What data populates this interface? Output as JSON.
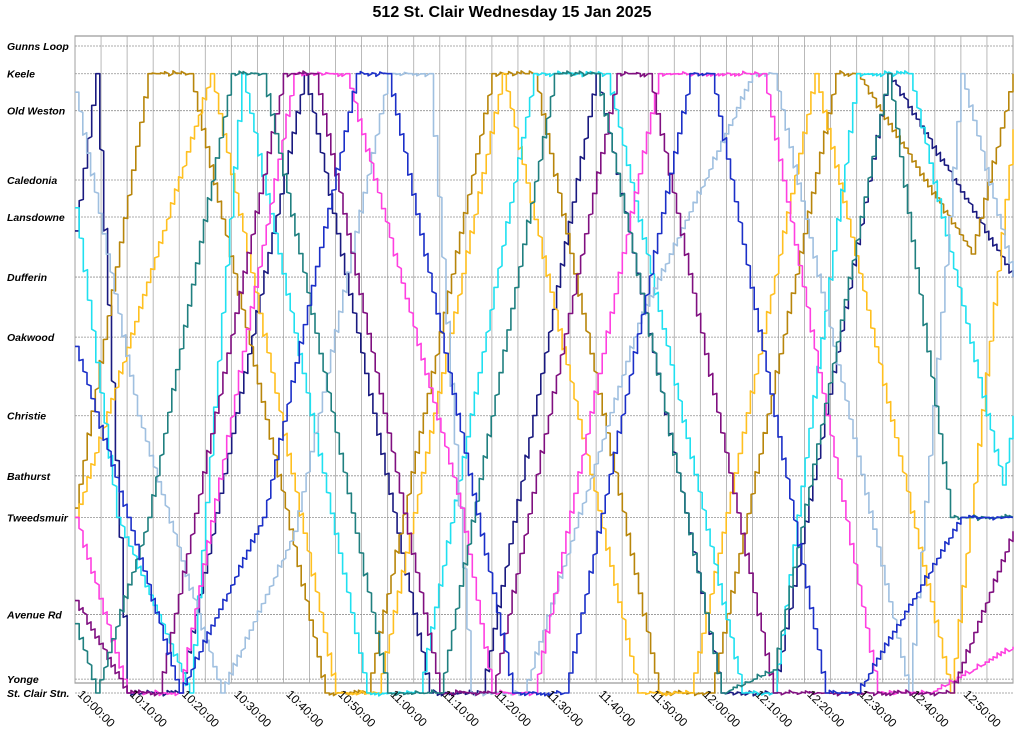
{
  "chart_data": {
    "type": "line",
    "title": "512 St. Clair Wednesday 15 Jan 2025",
    "xlabel": "",
    "ylabel": "",
    "x_ticks": [
      "10:00:00",
      "10:10:00",
      "10:20:00",
      "10:30:00",
      "10:40:00",
      "10:50:00",
      "11:00:00",
      "11:10:00",
      "11:20:00",
      "11:30:00",
      "11:40:00",
      "11:50:00",
      "12:00:00",
      "12:10:00",
      "12:20:00",
      "12:30:00",
      "12:40:00",
      "12:50:00"
    ],
    "x_range_minutes": [
      0,
      180
    ],
    "stops": [
      {
        "label": "Gunns Loop",
        "pos": 0
      },
      {
        "label": "Keele",
        "pos": 0.6
      },
      {
        "label": "Old Weston",
        "pos": 1.4
      },
      {
        "label": "Caledonia",
        "pos": 2.9
      },
      {
        "label": "Lansdowne",
        "pos": 3.7
      },
      {
        "label": "Dufferin",
        "pos": 5.0
      },
      {
        "label": "Oakwood",
        "pos": 6.3
      },
      {
        "label": "Christie",
        "pos": 8.0
      },
      {
        "label": "Bathurst",
        "pos": 9.3
      },
      {
        "label": "Tweedsmuir",
        "pos": 10.2
      },
      {
        "label": "Avenue Rd",
        "pos": 12.3
      },
      {
        "label": "Yonge",
        "pos": 13.7
      },
      {
        "label": "St. Clair Stn.",
        "pos": 14.0
      }
    ],
    "grid": true,
    "series": [
      {
        "color": "#1a1a80",
        "trips": [
          [
            0,
            4.0,
            1
          ],
          [
            4,
            0.6,
            -1
          ],
          [
            10,
            14.0,
            1
          ],
          [
            20,
            14.0,
            1
          ],
          [
            44,
            0.6,
            -1
          ],
          [
            68,
            14.0,
            1
          ],
          [
            78,
            14.0,
            1
          ],
          [
            100,
            0.6,
            -1
          ],
          [
            124,
            14.0,
            1
          ],
          [
            134,
            14.0,
            1
          ],
          [
            156,
            0.6,
            -1
          ],
          [
            180,
            5.0,
            1
          ]
        ]
      },
      {
        "color": "#b8860b",
        "trips": [
          [
            0,
            10.0,
            -1
          ],
          [
            14,
            0.6,
            -1
          ],
          [
            22,
            0.6,
            1
          ],
          [
            48,
            14.0,
            1
          ],
          [
            56,
            14.0,
            1
          ],
          [
            80,
            0.6,
            -1
          ],
          [
            88,
            0.6,
            1
          ],
          [
            112,
            14.0,
            1
          ],
          [
            122,
            14.0,
            1
          ],
          [
            146,
            0.6,
            -1
          ],
          [
            150,
            0.6,
            -1
          ],
          [
            172,
            4.5,
            -1
          ],
          [
            180,
            0.6,
            -1
          ]
        ]
      },
      {
        "color": "#ffc020",
        "trips": [
          [
            0,
            10.2,
            -1
          ],
          [
            26,
            0.6,
            -1
          ],
          [
            50,
            14.0,
            1
          ],
          [
            58,
            14.0,
            1
          ],
          [
            82,
            0.6,
            -1
          ],
          [
            108,
            14.0,
            1
          ],
          [
            118,
            14.0,
            1
          ],
          [
            142,
            0.6,
            -1
          ],
          [
            168,
            14.0,
            1
          ],
          [
            180,
            1.8,
            -1
          ]
        ]
      },
      {
        "color": "#20e0f0",
        "trips": [
          [
            0,
            3.5,
            -1
          ],
          [
            8,
            10.2,
            1
          ],
          [
            22,
            14.0,
            1
          ],
          [
            32,
            0.6,
            -1
          ],
          [
            56,
            14.0,
            1
          ],
          [
            66,
            14.0,
            1
          ],
          [
            88,
            0.6,
            -1
          ],
          [
            102,
            0.6,
            1
          ],
          [
            128,
            14.0,
            1
          ],
          [
            134,
            14.0,
            1
          ],
          [
            150,
            0.6,
            -1
          ],
          [
            160,
            0.6,
            1
          ],
          [
            178,
            9.5,
            1
          ],
          [
            180,
            8.0,
            -1
          ]
        ]
      },
      {
        "color": "#a0c0e0",
        "trips": [
          [
            0,
            1.0,
            -1
          ],
          [
            12,
            8.0,
            1
          ],
          [
            28,
            14.0,
            1
          ],
          [
            42,
            10.5,
            -1
          ],
          [
            60,
            0.6,
            -1
          ],
          [
            68,
            0.6,
            -1
          ],
          [
            76,
            14.0,
            1
          ],
          [
            86,
            14.0,
            1
          ],
          [
            108,
            6.0,
            -1
          ],
          [
            130,
            0.6,
            -1
          ],
          [
            134,
            0.6,
            -1
          ],
          [
            160,
            14.0,
            1
          ],
          [
            170,
            0.6,
            -1
          ],
          [
            180,
            5.0,
            1
          ]
        ]
      },
      {
        "color": "#ff40e0",
        "trips": [
          [
            0,
            10.2,
            1
          ],
          [
            10,
            14.0,
            1
          ],
          [
            20,
            14.0,
            1
          ],
          [
            42,
            0.6,
            -1
          ],
          [
            52,
            0.6,
            1
          ],
          [
            74,
            10.0,
            1
          ],
          [
            80,
            14.0,
            1
          ],
          [
            88,
            14.0,
            1
          ],
          [
            112,
            0.6,
            -1
          ],
          [
            132,
            0.6,
            -1
          ],
          [
            154,
            14.0,
            1
          ],
          [
            164,
            14.0,
            1
          ],
          [
            180,
            13.0,
            -1
          ]
        ]
      },
      {
        "color": "#801080",
        "trips": [
          [
            0,
            12.0,
            1
          ],
          [
            10,
            14.0,
            1
          ],
          [
            16,
            14.0,
            1
          ],
          [
            40,
            0.6,
            -1
          ],
          [
            46,
            0.6,
            1
          ],
          [
            70,
            14.0,
            1
          ],
          [
            80,
            14.0,
            1
          ],
          [
            104,
            0.6,
            -1
          ],
          [
            110,
            0.6,
            1
          ],
          [
            134,
            14.0,
            1
          ],
          [
            144,
            14.0,
            1
          ],
          [
            168,
            14.0,
            -1
          ],
          [
            180,
            10.5,
            -1
          ]
        ]
      },
      {
        "color": "#208080",
        "trips": [
          [
            0,
            12.5,
            1
          ],
          [
            4,
            14.0,
            1
          ],
          [
            14,
            10.2,
            -1
          ],
          [
            30,
            0.6,
            -1
          ],
          [
            36,
            0.6,
            1
          ],
          [
            60,
            14.0,
            1
          ],
          [
            70,
            14.0,
            1
          ],
          [
            92,
            0.6,
            -1
          ],
          [
            100,
            0.6,
            1
          ],
          [
            124,
            14.0,
            1
          ],
          [
            134,
            13.5,
            1
          ],
          [
            156,
            0.6,
            -1
          ],
          [
            168,
            10.2,
            1
          ],
          [
            180,
            10.2,
            1
          ]
        ]
      },
      {
        "color": "#1c30c8",
        "trips": [
          [
            0,
            6.5,
            1
          ],
          [
            10,
            10.2,
            1
          ],
          [
            20,
            14.0,
            1
          ],
          [
            36,
            10.2,
            -1
          ],
          [
            54,
            0.6,
            -1
          ],
          [
            60,
            0.6,
            1
          ],
          [
            84,
            14.0,
            1
          ],
          [
            94,
            14.0,
            1
          ],
          [
            118,
            0.6,
            -1
          ],
          [
            122,
            0.6,
            1
          ],
          [
            144,
            14.0,
            1
          ],
          [
            150,
            14.0,
            1
          ],
          [
            170,
            10.2,
            -1
          ],
          [
            180,
            10.2,
            1
          ]
        ]
      }
    ]
  }
}
